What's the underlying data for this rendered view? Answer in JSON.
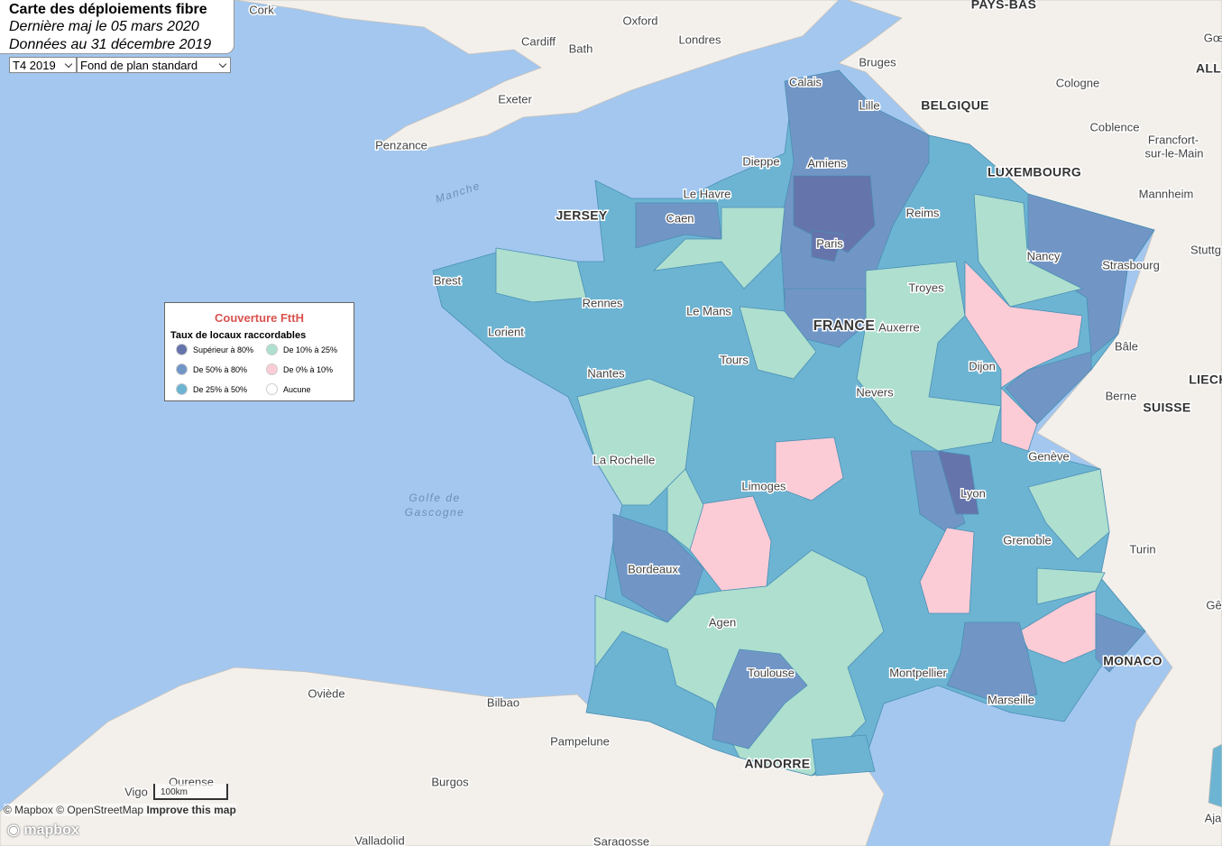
{
  "header": {
    "title": "Carte des déploiements fibre",
    "updated": "Dernière maj le 05 mars 2020",
    "data_date": "Données au 31 décembre 2019"
  },
  "controls": {
    "period": "T4 2019",
    "basemap": "Fond de plan standard"
  },
  "legend": {
    "title": "Couverture FttH",
    "subtitle": "Taux de locaux raccordables",
    "items": [
      {
        "label": "Supérieur à 80%",
        "color": "#6674ac"
      },
      {
        "label": "De 10% à 25%",
        "color": "#aedfcf"
      },
      {
        "label": "De 50% à 80%",
        "color": "#7196c6"
      },
      {
        "label": "De 0% à 10%",
        "color": "#fcccd6"
      },
      {
        "label": "De 25% à 50%",
        "color": "#6db4d3"
      },
      {
        "label": "Aucune",
        "color": "#ffffff"
      }
    ]
  },
  "map": {
    "cities": [
      "Cork",
      "Oxford",
      "Londres",
      "Cardiff",
      "Bath",
      "Exeter",
      "Penzance",
      "Bruges",
      "Calais",
      "Lille",
      "Cologne",
      "Coblence",
      "Francfort-",
      "sur-le-Main",
      "Mannheim",
      "Stuttg",
      "Dieppe",
      "Amiens",
      "Le Havre",
      "Caen",
      "Reims",
      "Paris",
      "Nancy",
      "Strasbourg",
      "Brest",
      "Rennes",
      "Le Mans",
      "Troyes",
      "Auxerre",
      "Lorient",
      "Tours",
      "Dijon",
      "Bâle",
      "Nantes",
      "Berne",
      "Nevers",
      "Genève",
      "La Rochelle",
      "Limoges",
      "Lyon",
      "Grenoble",
      "Turin",
      "Bordeaux",
      "Agen",
      "Toulouse",
      "Montpellier",
      "Marseille",
      "Oviède",
      "Bilbao",
      "Pampelune",
      "Burgos",
      "Vigo",
      "Ourense",
      "Valladolid",
      "Saragosse",
      "Gê",
      "Aja",
      "Gœ"
    ],
    "countries": [
      "PAYS-BAS",
      "ALL",
      "BELGIQUE",
      "LUXEMBOURG",
      "JERSEY",
      "FRANCE",
      "SUISSE",
      "LIECH",
      "MONACO",
      "ANDORRE"
    ],
    "seas": [
      "Manche",
      "Golfe de",
      "Gascogne"
    ],
    "scale": "100km"
  },
  "attribution": {
    "mapbox": "© Mapbox",
    "osm": "© OpenStreetMap",
    "improve": "Improve this map",
    "logo": "mapbox"
  }
}
